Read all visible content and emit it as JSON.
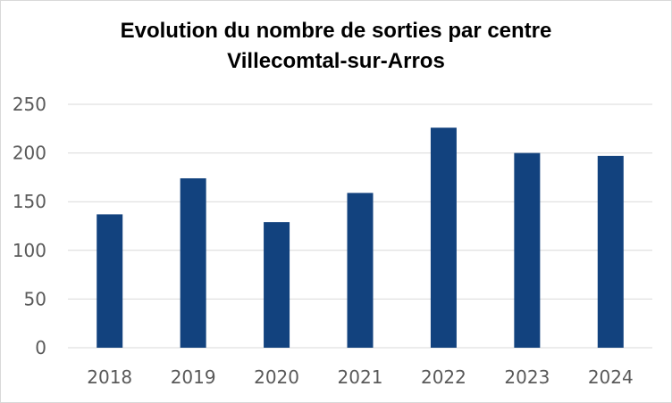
{
  "chart_data": {
    "type": "bar",
    "title": "Evolution du nombre de sorties par centre",
    "subtitle": "Villecomtal-sur-Arros",
    "categories": [
      "2018",
      "2019",
      "2020",
      "2021",
      "2022",
      "2023",
      "2024"
    ],
    "series": [
      {
        "values": [
          137,
          174,
          129,
          159,
          226,
          200,
          197
        ]
      }
    ],
    "xlabel": "",
    "ylabel": "",
    "ylim": [
      0,
      250
    ],
    "yticks": [
      0,
      50,
      100,
      150,
      200,
      250
    ],
    "grid": true,
    "legend": "none",
    "colors": {
      "bar": "#12427e",
      "grid": "#d9d9d9",
      "axis_text": "#595959"
    }
  }
}
